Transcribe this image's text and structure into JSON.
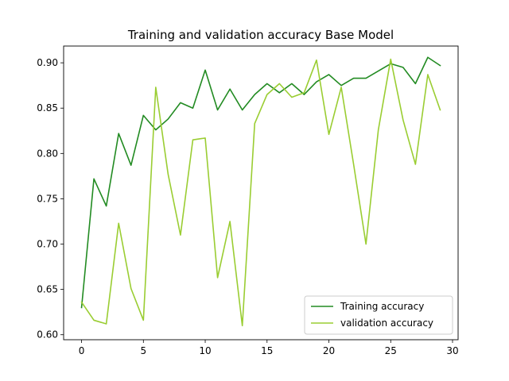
{
  "chart_data": {
    "type": "line",
    "title": "Training and validation accuracy Base Model",
    "xlabel": "",
    "ylabel": "",
    "xlim": [
      -1.45,
      30.45
    ],
    "ylim": [
      0.5945,
      0.9185
    ],
    "xticks": [
      0,
      5,
      10,
      15,
      20,
      25,
      30
    ],
    "yticks": [
      0.6,
      0.65,
      0.7,
      0.75,
      0.8,
      0.85,
      0.9
    ],
    "xtick_labels": [
      "0",
      "5",
      "10",
      "15",
      "20",
      "25",
      "30"
    ],
    "ytick_labels": [
      "0.60",
      "0.65",
      "0.70",
      "0.75",
      "0.80",
      "0.85",
      "0.90"
    ],
    "grid": false,
    "legend_position": "lower-right",
    "x": [
      0,
      1,
      2,
      3,
      4,
      5,
      6,
      7,
      8,
      9,
      10,
      11,
      12,
      13,
      14,
      15,
      16,
      17,
      18,
      19,
      20,
      21,
      22,
      23,
      24,
      25,
      26,
      27,
      28,
      29
    ],
    "series": [
      {
        "name": "Training accuracy",
        "color": "#228b22",
        "values": [
          0.63,
          0.772,
          0.742,
          0.822,
          0.787,
          0.842,
          0.826,
          0.838,
          0.856,
          0.85,
          0.892,
          0.848,
          0.871,
          0.848,
          0.865,
          0.877,
          0.867,
          0.877,
          0.865,
          0.879,
          0.887,
          0.875,
          0.883,
          0.883,
          0.891,
          0.899,
          0.895,
          0.877,
          0.906,
          0.897
        ]
      },
      {
        "name": "validation accuracy",
        "color": "#9acd32",
        "values": [
          0.636,
          0.616,
          0.612,
          0.723,
          0.651,
          0.616,
          0.873,
          0.777,
          0.71,
          0.815,
          0.817,
          0.663,
          0.725,
          0.61,
          0.833,
          0.865,
          0.877,
          0.862,
          0.867,
          0.903,
          0.821,
          0.873,
          0.788,
          0.7,
          0.826,
          0.904,
          0.837,
          0.788,
          0.887,
          0.848
        ]
      }
    ]
  }
}
